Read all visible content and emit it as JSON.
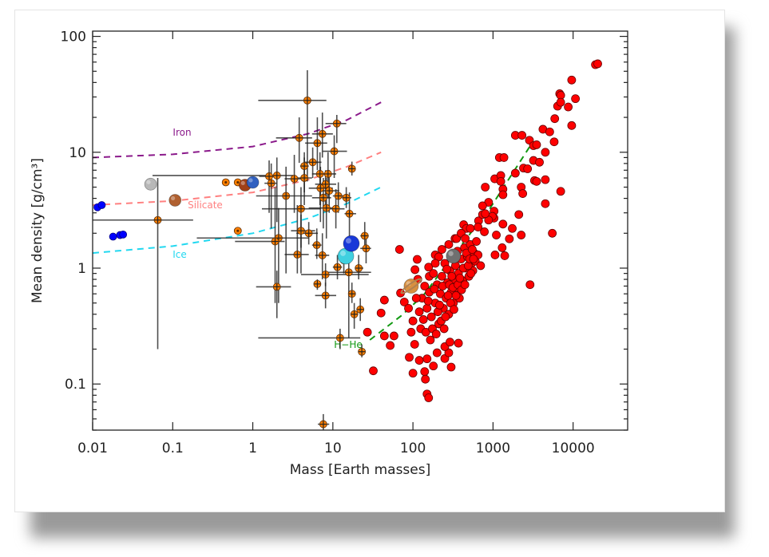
{
  "chart_data": {
    "type": "scatter",
    "xlabel": "Mass [Earth masses]",
    "ylabel": "Mean density [g/cm³]",
    "xscale": "log",
    "yscale": "log",
    "xlim": [
      0.01,
      48000
    ],
    "ylim": [
      0.04,
      111
    ],
    "grid": false,
    "x_ticks": [
      {
        "value": 0.01,
        "label": "0.01"
      },
      {
        "value": 0.1,
        "label": "0.1"
      },
      {
        "value": 1,
        "label": "1"
      },
      {
        "value": 10,
        "label": "10"
      },
      {
        "value": 100,
        "label": "100"
      },
      {
        "value": 1000,
        "label": "1000"
      },
      {
        "value": 10000,
        "label": "10000"
      }
    ],
    "y_ticks": [
      {
        "value": 0.1,
        "label": "0.1"
      },
      {
        "value": 1,
        "label": "1"
      },
      {
        "value": 10,
        "label": "10"
      },
      {
        "value": 100,
        "label": "100"
      }
    ],
    "colors": {
      "giant_planets": "#ff0000",
      "small_planets": "#ff8000",
      "moons": "#0000ff",
      "iron": "#8b1a8b",
      "silicate": "#ff8080",
      "ice": "#22d8f0",
      "h_he": "#119911",
      "error_bars": "#333333"
    },
    "curves": [
      {
        "label": "Iron",
        "color": "#8b1a8b",
        "points": [
          [
            0.01,
            9.0
          ],
          [
            0.1,
            9.6
          ],
          [
            1,
            11.2
          ],
          [
            5,
            14.5
          ],
          [
            15,
            19
          ],
          [
            40,
            27
          ]
        ]
      },
      {
        "label": "Silicate",
        "color": "#ff8080",
        "points": [
          [
            0.01,
            3.5
          ],
          [
            0.1,
            3.8
          ],
          [
            1,
            4.5
          ],
          [
            5,
            5.8
          ],
          [
            15,
            7.5
          ],
          [
            40,
            10
          ]
        ]
      },
      {
        "label": "Ice",
        "color": "#22d8f0",
        "points": [
          [
            0.01,
            1.35
          ],
          [
            0.1,
            1.55
          ],
          [
            1,
            2.0
          ],
          [
            5,
            2.7
          ],
          [
            15,
            3.6
          ],
          [
            40,
            5.0
          ]
        ]
      },
      {
        "label": "H−He",
        "color": "#119911",
        "points": [
          [
            29,
            0.24
          ],
          [
            72,
            0.39
          ],
          [
            137,
            0.59
          ],
          [
            430,
            1.68
          ],
          [
            920,
            3.3
          ],
          [
            2900,
            11.3
          ]
        ]
      }
    ],
    "solar_system": [
      {
        "kind": "moon",
        "m": 0.0115,
        "d": 3.35
      },
      {
        "kind": "moon",
        "m": 0.013,
        "d": 3.5
      },
      {
        "kind": "moon",
        "m": 0.018,
        "d": 1.87
      },
      {
        "kind": "moon",
        "m": 0.022,
        "d": 1.93
      },
      {
        "kind": "moon",
        "m": 0.024,
        "d": 1.95
      },
      {
        "kind": "rocky",
        "m": 0.053,
        "d": 5.3,
        "color": "#b8b8b8"
      },
      {
        "kind": "rocky",
        "m": 0.107,
        "d": 3.85,
        "color": "#b06030"
      },
      {
        "kind": "rocky",
        "m": 0.8,
        "d": 5.2,
        "color": "#a04018"
      },
      {
        "kind": "rocky",
        "m": 1.0,
        "d": 5.5,
        "color": "#3060c0"
      },
      {
        "kind": "ice-giant",
        "m": 14.5,
        "d": 1.27,
        "color": "#40d0e0"
      },
      {
        "kind": "ice-giant",
        "m": 17,
        "d": 1.63,
        "color": "#1838d8"
      },
      {
        "kind": "gas-giant",
        "m": 95,
        "d": 0.7,
        "color": "#d89040"
      },
      {
        "kind": "gas-giant",
        "m": 320,
        "d": 1.27,
        "color": "#707070"
      }
    ],
    "small_planets": [
      [
        4.8,
        28,
        1.17,
        8.3,
        5.6,
        51
      ],
      [
        11.2,
        17.7,
        8.1,
        14.7,
        12,
        21
      ],
      [
        3.8,
        13.3,
        1.95,
        5.5,
        8.1,
        20
      ],
      [
        7.4,
        14.4,
        5.5,
        10,
        9,
        22
      ],
      [
        6.4,
        12,
        4.5,
        8.5,
        7,
        20
      ],
      [
        10.4,
        10.2,
        7.5,
        15,
        6,
        14
      ],
      [
        5.6,
        8.2,
        4.5,
        7.2,
        6,
        11
      ],
      [
        4.4,
        7.6,
        3.9,
        5,
        4.5,
        10
      ],
      [
        17.3,
        7.2,
        16,
        19,
        6.3,
        8.3
      ],
      [
        2.0,
        6.3,
        0.056,
        3.2,
        2.5,
        9
      ],
      [
        1.6,
        6.2,
        1.2,
        2.1,
        3.0,
        8.5
      ],
      [
        1.7,
        5.4,
        1.4,
        2,
        2.2,
        8
      ],
      [
        3.3,
        5.9,
        2.5,
        4,
        3,
        9.5
      ],
      [
        4.4,
        6.0,
        3,
        5.5,
        3.5,
        9
      ],
      [
        6.9,
        6.5,
        5.5,
        8.5,
        3.5,
        10
      ],
      [
        8.7,
        6.5,
        7,
        11,
        4,
        10
      ],
      [
        8.1,
        5.3,
        6,
        11,
        3.5,
        7
      ],
      [
        7.0,
        4.9,
        5,
        10,
        2.5,
        7.5
      ],
      [
        9.0,
        4.65,
        7.5,
        12,
        3,
        7
      ],
      [
        7.6,
        4.05,
        5.5,
        9.5,
        2.2,
        6
      ],
      [
        11.7,
        4.2,
        10,
        14,
        3,
        5.5
      ],
      [
        14.7,
        4.05,
        13,
        17,
        3.3,
        5
      ],
      [
        2.6,
        4.2,
        1.1,
        5.5,
        0.9,
        7.5
      ],
      [
        4.0,
        3.25,
        1.3,
        7,
        0.9,
        5
      ],
      [
        8.3,
        3.3,
        5,
        12,
        1.8,
        6
      ],
      [
        10.9,
        3.25,
        9,
        14,
        2.2,
        4.8
      ],
      [
        16.1,
        2.95,
        14,
        19.5,
        1.1,
        4.5
      ],
      [
        0.65,
        2.1
      ],
      [
        4.0,
        2.1,
        3,
        6,
        1.5,
        2.9
      ],
      [
        5.0,
        2.0,
        3.5,
        6.5,
        1.6,
        2.5
      ],
      [
        2.1,
        1.82,
        0.2,
        5,
        0.5,
        3.3
      ],
      [
        1.9,
        1.7,
        0.6,
        2.5,
        0.5,
        5
      ],
      [
        25,
        1.9,
        22,
        28,
        1.4,
        2.5
      ],
      [
        26,
        1.48,
        22,
        30,
        1.1,
        1.9
      ],
      [
        6.3,
        1.58,
        5.5,
        7.2,
        1.2,
        2.2
      ],
      [
        3.6,
        1.31,
        2.5,
        5,
        0.9,
        3.5
      ],
      [
        7.4,
        1.29,
        6,
        9,
        0.8,
        2
      ],
      [
        0.46,
        5.5
      ],
      [
        0.65,
        5.5
      ],
      [
        13.7,
        1.17,
        12,
        15.5,
        0.9,
        1.4
      ],
      [
        11.4,
        1.02,
        10,
        13,
        0.8,
        1.3
      ],
      [
        21,
        1.0,
        19,
        24,
        0.8,
        1.3
      ],
      [
        15.8,
        0.92,
        8,
        30,
        0.25,
        1.5
      ],
      [
        8.1,
        0.88,
        4,
        28,
        0.7,
        1.1
      ],
      [
        6.4,
        0.73,
        6,
        7,
        0.65,
        0.8
      ],
      [
        2.0,
        0.69,
        1.1,
        3.0,
        0.37,
        0.95
      ],
      [
        8.1,
        0.58,
        6,
        11,
        0.45,
        0.75
      ],
      [
        17.3,
        0.6,
        16,
        19,
        0.5,
        0.75
      ],
      [
        22,
        0.44,
        20,
        24.5,
        0.35,
        0.55
      ],
      [
        18.5,
        0.4,
        17.5,
        19.5,
        0.3,
        0.5
      ],
      [
        12.3,
        0.25,
        1.17,
        22,
        0.2,
        0.3
      ],
      [
        23,
        0.19,
        21,
        25,
        0.17,
        0.22
      ],
      [
        7.6,
        0.045,
        6.5,
        9,
        0.04,
        0.055
      ],
      [
        0.065,
        2.6,
        0.01,
        0.18,
        0.2,
        6
      ]
    ],
    "giant_planets": [
      [
        19000,
        57
      ],
      [
        20300,
        58
      ],
      [
        9600,
        42
      ],
      [
        6800,
        32
      ],
      [
        7000,
        31
      ],
      [
        10700,
        29
      ],
      [
        6400,
        25
      ],
      [
        8700,
        24.6
      ],
      [
        9600,
        17
      ],
      [
        5900,
        19.5
      ],
      [
        1900,
        14
      ],
      [
        2300,
        14
      ],
      [
        2850,
        12.7
      ],
      [
        3200,
        11.4
      ],
      [
        3500,
        11.6
      ],
      [
        4500,
        10
      ],
      [
        4200,
        15.8
      ],
      [
        5100,
        15
      ],
      [
        5800,
        12.3
      ],
      [
        7000,
        27
      ],
      [
        1200,
        9
      ],
      [
        1370,
        9
      ],
      [
        2400,
        7.3
      ],
      [
        2700,
        7.2
      ],
      [
        3200,
        8.5
      ],
      [
        3800,
        8.2
      ],
      [
        1900,
        6.6
      ],
      [
        3300,
        5.7
      ],
      [
        3500,
        5.6
      ],
      [
        4500,
        5.8
      ],
      [
        7000,
        4.6
      ],
      [
        2250,
        5.0
      ],
      [
        2350,
        4.4
      ],
      [
        1050,
        5.9
      ],
      [
        1250,
        6.3
      ],
      [
        1250,
        5.6
      ],
      [
        800,
        5.0
      ],
      [
        1330,
        4.8
      ],
      [
        1330,
        4.3
      ],
      [
        880,
        3.7
      ],
      [
        740,
        3.45
      ],
      [
        1030,
        3.1
      ],
      [
        1030,
        2.7
      ],
      [
        980,
        2.8
      ],
      [
        880,
        2.6
      ],
      [
        2100,
        2.9
      ],
      [
        4500,
        3.6
      ],
      [
        1330,
        2.4
      ],
      [
        1100,
        1.93
      ],
      [
        1600,
        1.79
      ],
      [
        1740,
        2.2
      ],
      [
        2250,
        1.93
      ],
      [
        5500,
        2.0
      ],
      [
        2900,
        0.72
      ],
      [
        1300,
        1.5
      ],
      [
        1060,
        1.3
      ],
      [
        1400,
        1.28
      ],
      [
        780,
        2.06
      ],
      [
        660,
        2.56
      ],
      [
        740,
        2.9
      ],
      [
        800,
        2.95
      ],
      [
        650,
        2.26
      ],
      [
        32,
        0.13
      ],
      [
        27,
        0.28
      ],
      [
        44,
        0.26
      ],
      [
        52,
        0.215
      ],
      [
        58,
        0.26
      ],
      [
        40,
        0.41
      ],
      [
        44,
        0.53
      ],
      [
        68,
        1.45
      ],
      [
        70,
        0.61
      ],
      [
        78,
        0.51
      ],
      [
        106,
        0.97
      ],
      [
        113,
        1.19
      ],
      [
        157,
        1.02
      ],
      [
        160,
        0.85
      ],
      [
        190,
        1.3
      ],
      [
        335,
        1.8
      ],
      [
        430,
        2.37
      ],
      [
        465,
        2.2
      ],
      [
        100,
        0.124
      ],
      [
        150,
        0.082
      ],
      [
        157,
        0.076
      ],
      [
        140,
        0.128
      ],
      [
        143,
        0.11
      ],
      [
        300,
        0.14
      ],
      [
        90,
        0.17
      ],
      [
        120,
        0.16
      ],
      [
        150,
        0.165
      ],
      [
        180,
        0.143
      ],
      [
        200,
        0.186
      ],
      [
        250,
        0.166
      ],
      [
        280,
        0.186
      ],
      [
        370,
        0.225
      ],
      [
        250,
        0.21
      ],
      [
        290,
        0.23
      ],
      [
        130,
        0.55
      ],
      [
        140,
        0.7
      ],
      [
        150,
        0.45
      ],
      [
        160,
        0.62
      ],
      [
        170,
        0.38
      ],
      [
        180,
        0.9
      ],
      [
        190,
        0.5
      ],
      [
        200,
        0.72
      ],
      [
        210,
        0.33
      ],
      [
        220,
        0.6
      ],
      [
        230,
        0.85
      ],
      [
        240,
        0.45
      ],
      [
        250,
        1.1
      ],
      [
        260,
        0.55
      ],
      [
        270,
        0.75
      ],
      [
        280,
        0.4
      ],
      [
        290,
        0.95
      ],
      [
        300,
        0.62
      ],
      [
        310,
        1.3
      ],
      [
        320,
        0.5
      ],
      [
        330,
        0.8
      ],
      [
        340,
        1.05
      ],
      [
        350,
        0.68
      ],
      [
        360,
        1.4
      ],
      [
        370,
        0.9
      ],
      [
        380,
        0.55
      ],
      [
        400,
        1.2
      ],
      [
        420,
        0.78
      ],
      [
        440,
        1.5
      ],
      [
        460,
        1.0
      ],
      [
        480,
        1.25
      ],
      [
        500,
        0.85
      ],
      [
        520,
        1.6
      ],
      [
        540,
        1.1
      ],
      [
        560,
        0.95
      ],
      [
        580,
        1.35
      ],
      [
        600,
        1.15
      ],
      [
        620,
        1.7
      ],
      [
        650,
        1.3
      ],
      [
        700,
        1.05
      ],
      [
        120,
        0.42
      ],
      [
        125,
        0.3
      ],
      [
        135,
        0.36
      ],
      [
        145,
        0.28
      ],
      [
        155,
        0.52
      ],
      [
        165,
        0.24
      ],
      [
        175,
        0.3
      ],
      [
        185,
        0.66
      ],
      [
        195,
        0.27
      ],
      [
        205,
        0.42
      ],
      [
        215,
        0.48
      ],
      [
        225,
        0.35
      ],
      [
        235,
        0.7
      ],
      [
        245,
        0.3
      ],
      [
        255,
        0.38
      ],
      [
        265,
        0.98
      ],
      [
        275,
        0.58
      ],
      [
        285,
        0.72
      ],
      [
        295,
        0.5
      ],
      [
        305,
        0.85
      ],
      [
        315,
        0.68
      ],
      [
        325,
        0.44
      ],
      [
        345,
        0.58
      ],
      [
        365,
        0.72
      ],
      [
        385,
        0.82
      ],
      [
        405,
        0.65
      ],
      [
        425,
        1.0
      ],
      [
        445,
        0.72
      ],
      [
        465,
        1.35
      ],
      [
        490,
        1.05
      ],
      [
        510,
        1.2
      ],
      [
        530,
        0.9
      ],
      [
        550,
        1.45
      ],
      [
        570,
        1.2
      ],
      [
        100,
        0.35
      ],
      [
        110,
        0.55
      ],
      [
        95,
        0.28
      ],
      [
        105,
        0.22
      ],
      [
        115,
        0.8
      ],
      [
        88,
        0.45
      ],
      [
        210,
        1.25
      ],
      [
        230,
        1.45
      ],
      [
        190,
        1.1
      ],
      [
        280,
        1.6
      ],
      [
        350,
        1.8
      ],
      [
        400,
        2.0
      ],
      [
        450,
        1.8
      ],
      [
        520,
        2.2
      ]
    ]
  }
}
